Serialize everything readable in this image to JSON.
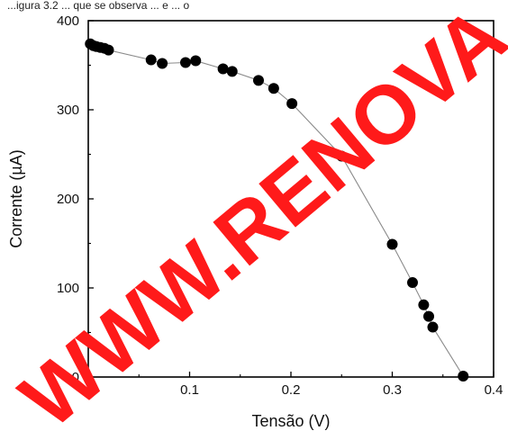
{
  "caption_fragment": "...igura 3.2 ... que se observa ... e ... o",
  "watermark": "WWW.RENOVA",
  "watermark_color": "#ff1a1a",
  "chart_data": {
    "type": "scatter",
    "xlabel": "Tensão (V)",
    "ylabel": "Corrente (µA)",
    "xlim": [
      0.0,
      0.4
    ],
    "ylim": [
      0,
      400
    ],
    "x_ticks": [
      "0.0",
      "0.1",
      "0.2",
      "0.3",
      "0.4"
    ],
    "y_ticks": [
      "0",
      "100",
      "200",
      "300",
      "400"
    ],
    "grid": false,
    "legend": "none",
    "marker_color": "#000000",
    "line_color": "#8a8a8a",
    "series": [
      {
        "x": [
          0.002,
          0.005,
          0.008,
          0.012,
          0.016,
          0.02,
          0.062,
          0.073,
          0.096,
          0.106,
          0.133,
          0.142,
          0.168,
          0.183,
          0.201,
          0.25,
          0.3,
          0.32,
          0.331,
          0.336,
          0.34,
          0.37
        ],
        "y": [
          374,
          372,
          371,
          370,
          369,
          367,
          356,
          352,
          353,
          355,
          346,
          343,
          333,
          324,
          307,
          248,
          149,
          106,
          81,
          68,
          56,
          1
        ]
      }
    ]
  }
}
